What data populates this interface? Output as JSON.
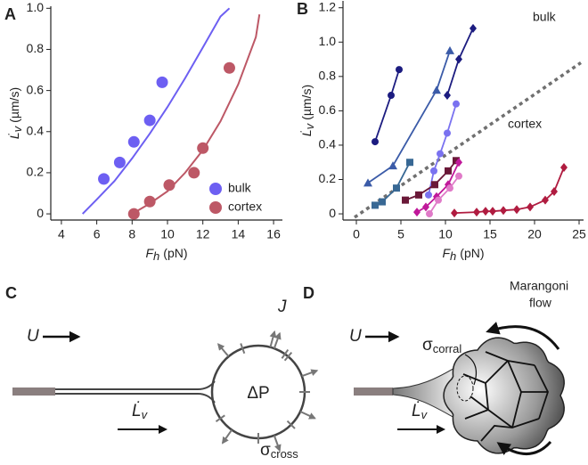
{
  "chart_data": [
    {
      "type": "scatter",
      "panel": "A",
      "x_label": {
        "symbol": "F",
        "sub": "h",
        "unit": "(pN)"
      },
      "y_label": {
        "symbol": "L̇",
        "sub": "v",
        "unit": "(µm/s)"
      },
      "xlim": [
        3.4,
        16.5
      ],
      "xticks": [
        4,
        6,
        8,
        10,
        12,
        14,
        16
      ],
      "ylim": [
        -0.03,
        1.01
      ],
      "yticks": [
        0,
        0.2,
        0.4,
        0.6,
        0.8,
        {
          "value": 1,
          "label": "1.0"
        }
      ],
      "legend": "lower right",
      "series": [
        {
          "name": "bulk",
          "color": "#6d5ff2",
          "marker": "circle",
          "x": [
            6.4,
            7.3,
            8.1,
            9.0,
            9.7
          ],
          "values": [
            0.17,
            0.25,
            0.35,
            0.455,
            0.64
          ]
        },
        {
          "name": "cortex",
          "color": "#bd5866",
          "marker": "circle",
          "x": [
            8.1,
            9.0,
            10.1,
            11.5,
            12.0,
            13.5
          ],
          "values": [
            0,
            0.06,
            0.14,
            0.2,
            0.32,
            0.71
          ]
        }
      ],
      "fits": [
        {
          "color": "#6d5ff2",
          "x": [
            5.2,
            6,
            7,
            8,
            9,
            10,
            11,
            12,
            13,
            13.5
          ],
          "values": [
            0,
            0.07,
            0.16,
            0.27,
            0.39,
            0.52,
            0.66,
            0.81,
            0.96,
            1.0
          ]
        },
        {
          "color": "#bd5866",
          "x": [
            8,
            9,
            10,
            11,
            12,
            13,
            14,
            15,
            15.2
          ],
          "values": [
            0,
            0.05,
            0.11,
            0.2,
            0.31,
            0.45,
            0.63,
            0.86,
            0.97
          ]
        }
      ]
    },
    {
      "type": "scatter",
      "panel": "B",
      "connect": true,
      "x_label": {
        "symbol": "F",
        "sub": "h",
        "unit": "(pN)"
      },
      "y_label": {
        "symbol": "L̇",
        "sub": "v",
        "unit": "(µm/s)"
      },
      "xlim": [
        -1.5,
        25.5
      ],
      "xticks": [
        0,
        5,
        10,
        15,
        20,
        25
      ],
      "ylim": [
        -0.036,
        1.24
      ],
      "yticks": [
        0,
        0.2,
        0.4,
        0.6,
        0.8,
        {
          "value": 1,
          "label": "1.0"
        },
        1.2
      ],
      "annotations": [
        {
          "text": "bulk",
          "color": "#6d5ff2"
        },
        {
          "text": "cortex",
          "color": "#c0546a"
        }
      ],
      "reference_line": {
        "color": "#707070",
        "x": [
          -0.2,
          25.2
        ],
        "values": [
          -0.02,
          0.88
        ]
      },
      "series": [
        {
          "color": "#1c1c80",
          "marker": "circle",
          "x": [
            2.1,
            3.9,
            4.8
          ],
          "values": [
            0.42,
            0.69,
            0.84
          ]
        },
        {
          "color": "#3b5ba8",
          "marker": "triangle",
          "x": [
            1.3,
            4.1,
            9.0,
            10.5
          ],
          "values": [
            0.18,
            0.28,
            0.72,
            0.95
          ]
        },
        {
          "color": "#1c1c80",
          "marker": "diamond",
          "x": [
            10.2,
            11.5,
            13.1
          ],
          "values": [
            0.69,
            0.9,
            1.08
          ]
        },
        {
          "color": "#386894",
          "marker": "square",
          "x": [
            2.1,
            2.9,
            4.5,
            6.0
          ],
          "values": [
            0.05,
            0.07,
            0.15,
            0.3
          ]
        },
        {
          "color": "#7a72f0",
          "marker": "circle",
          "x": [
            8.1,
            8.7,
            9.4,
            10.2,
            11.2
          ],
          "values": [
            0.11,
            0.25,
            0.35,
            0.47,
            0.64
          ]
        },
        {
          "color": "#6a1838",
          "marker": "square",
          "x": [
            5.5,
            7.0,
            8.8,
            10.3,
            11.2
          ],
          "values": [
            0.08,
            0.11,
            0.17,
            0.25,
            0.31
          ]
        },
        {
          "color": "#c0189a",
          "marker": "diamond",
          "x": [
            6.8,
            7.8,
            9.0,
            10.3,
            11.5
          ],
          "values": [
            0.01,
            0.04,
            0.1,
            0.17,
            0.3
          ]
        },
        {
          "color": "#e07ac8",
          "marker": "circle",
          "x": [
            8.2,
            9.2,
            10.5,
            11.5
          ],
          "values": [
            0,
            0.08,
            0.15,
            0.22
          ]
        },
        {
          "color": "#b01c40",
          "marker": "diamond",
          "x": [
            11,
            13.5,
            14.5,
            15.3,
            16.5,
            18,
            19.5,
            21.2,
            22.2,
            23.3
          ],
          "values": [
            0.005,
            0.01,
            0.015,
            0.015,
            0.02,
            0.025,
            0.04,
            0.08,
            0.13,
            0.27
          ]
        }
      ]
    }
  ],
  "diagrams": [
    {
      "panel": "C",
      "velocity": "U",
      "flux": "J",
      "pressure": "ΔP",
      "tension": {
        "symbol": "σ",
        "sub": "cross"
      },
      "growth": {
        "symbol": "L̇",
        "sub": "v"
      }
    },
    {
      "panel": "D",
      "velocity": "U",
      "flow": [
        "Marangoni",
        "flow"
      ],
      "tension": {
        "symbol": "σ",
        "sub": "corral"
      },
      "growth": {
        "symbol": "L̇",
        "sub": "v"
      }
    }
  ]
}
